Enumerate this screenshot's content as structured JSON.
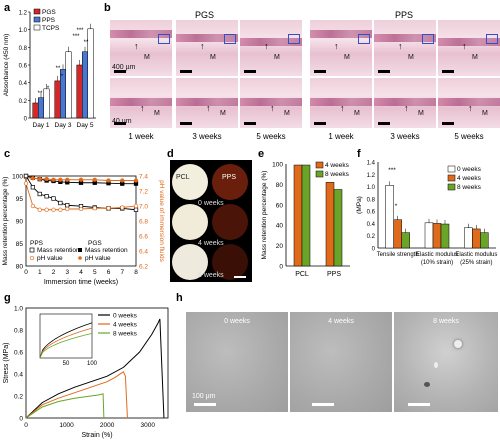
{
  "panels": {
    "a": "a",
    "b": "b",
    "c": "c",
    "d": "d",
    "e": "e",
    "f": "f",
    "g": "g",
    "h": "h"
  },
  "chart_a": {
    "type": "bar",
    "ylabel": "Absorbance (450 nm)",
    "ylim": [
      0,
      1.2
    ],
    "yticks": [
      "0",
      "0.2",
      "0.4",
      "0.6",
      "0.8",
      "1.0",
      "1.2"
    ],
    "categories": [
      "Day 1",
      "Day 3",
      "Day 5"
    ],
    "series": [
      {
        "name": "PGS",
        "color": "#d62728",
        "values": [
          0.17,
          0.42,
          0.6
        ]
      },
      {
        "name": "PPS",
        "color": "#4a78d0",
        "values": [
          0.23,
          0.55,
          0.75
        ]
      },
      {
        "name": "TCPS",
        "color": "#ffffff",
        "values": [
          0.33,
          0.75,
          1.01
        ]
      }
    ],
    "sig": [
      "**",
      "*",
      "**",
      "***",
      "*",
      "***",
      "**"
    ]
  },
  "histology": {
    "groups": [
      "PGS",
      "PPS"
    ],
    "columns": [
      "1 week",
      "3 weeks",
      "5 weeks",
      "1 week",
      "3 weeks",
      "5 weeks"
    ],
    "marker": "M",
    "scale_top": "400 µm",
    "scale_bottom": "40 µm"
  },
  "chart_c": {
    "type": "line",
    "xlabel": "Immersion time (weeks)",
    "ylabel": "Mass retention percentage (%)",
    "ylabel2": "pH value of immersion fluids",
    "xticks": [
      "0",
      "1",
      "2",
      "3",
      "4",
      "5",
      "6",
      "7",
      "8"
    ],
    "yticks": [
      "80",
      "85",
      "90",
      "95",
      "100"
    ],
    "y2ticks": [
      "6.2",
      "6.4",
      "6.6",
      "6.8",
      "7.0",
      "7.2",
      "7.4"
    ],
    "legend": {
      "pps": "PPS",
      "pgs": "PGS",
      "mass": "Mass retention",
      "ph": "pH value"
    },
    "series": [
      {
        "group": "PGS",
        "kind": "Mass retention",
        "x": [
          0,
          0.5,
          1,
          1.5,
          2,
          2.5,
          3,
          4,
          5,
          6,
          7,
          8
        ],
        "y": [
          100,
          99.6,
          99.3,
          99.0,
          98.9,
          98.7,
          98.6,
          98.5,
          98.5,
          98.4,
          98.3,
          98.3
        ]
      },
      {
        "group": "PGS",
        "kind": "pH value",
        "x": [
          0,
          0.5,
          1,
          1.5,
          2,
          2.5,
          3,
          4,
          5,
          6,
          7,
          8
        ],
        "y": [
          7.38,
          7.37,
          7.36,
          7.36,
          7.35,
          7.35,
          7.35,
          7.35,
          7.35,
          7.34,
          7.34,
          7.34
        ]
      },
      {
        "group": "PPS",
        "kind": "Mass retention",
        "x": [
          0,
          0.5,
          1,
          1.5,
          2,
          2.5,
          3,
          4,
          5,
          6,
          7,
          8
        ],
        "y": [
          100,
          97.5,
          96.0,
          95.5,
          95.0,
          94.0,
          93.5,
          93.3,
          93.0,
          92.8,
          92.8,
          92.5
        ]
      },
      {
        "group": "PPS",
        "kind": "pH value",
        "x": [
          0,
          0.5,
          1,
          1.5,
          2,
          2.5,
          3,
          4,
          5,
          6,
          7,
          8
        ],
        "y": [
          7.3,
          7.0,
          6.95,
          6.95,
          6.95,
          6.95,
          6.96,
          6.96,
          6.97,
          6.97,
          6.98,
          7.0
        ]
      }
    ]
  },
  "panel_d": {
    "labels": [
      "PCL",
      "PPS"
    ],
    "rows": [
      "0 weeks",
      "4 weeks",
      "8 weeks"
    ]
  },
  "chart_e": {
    "type": "bar",
    "ylabel": "Mass retention percentage (%)",
    "ylim": [
      0,
      100
    ],
    "yticks": [
      "0",
      "20",
      "40",
      "60",
      "80",
      "100"
    ],
    "categories": [
      "PCL",
      "PPS"
    ],
    "series": [
      {
        "name": "4 weeks",
        "color": "#e06a1b",
        "values": [
          99,
          82
        ]
      },
      {
        "name": "8 weeks",
        "color": "#6aa52a",
        "values": [
          99,
          75
        ]
      }
    ]
  },
  "chart_f": {
    "type": "bar",
    "ylabel": "(MPa)",
    "ylim": [
      0,
      1.4
    ],
    "yticks": [
      "0",
      "0.2",
      "0.4",
      "0.6",
      "0.8",
      "1.0",
      "1.2",
      "1.4"
    ],
    "categories": [
      "Tensile strength",
      "Elastic modulus (10% strain)",
      "Elastic modulus (25% strain)"
    ],
    "cat_lines": [
      [
        "Tensile strength"
      ],
      [
        "Elastic modulus",
        "(10% strain)"
      ],
      [
        "Elastic modulus",
        "(25% strain)"
      ]
    ],
    "series": [
      {
        "name": "0 weeks",
        "color": "#ffffff",
        "values": [
          1.02,
          0.41,
          0.33
        ]
      },
      {
        "name": "4 weeks",
        "color": "#e06a1b",
        "values": [
          0.46,
          0.4,
          0.31
        ]
      },
      {
        "name": "8 weeks",
        "color": "#6aa52a",
        "values": [
          0.25,
          0.39,
          0.25
        ]
      }
    ],
    "sig": [
      "***",
      "*"
    ]
  },
  "chart_g": {
    "type": "line",
    "xlabel": "Strain (%)",
    "ylabel": "Stress (MPa)",
    "ylim": [
      0,
      1.0
    ],
    "xlim": [
      0,
      3500
    ],
    "yticks": [
      "0",
      "0.2",
      "0.4",
      "0.6",
      "0.8",
      "1.0"
    ],
    "xticks": [
      "0",
      "1000",
      "2000",
      "3000"
    ],
    "inset_xticks": [
      "50",
      "100"
    ],
    "series": [
      {
        "name": "0 weeks",
        "color": "#000000",
        "x": [
          0,
          400,
          800,
          1200,
          1600,
          2000,
          2400,
          2800,
          3100,
          3250,
          3300,
          3400
        ],
        "y": [
          0,
          0.14,
          0.22,
          0.28,
          0.33,
          0.38,
          0.46,
          0.6,
          0.76,
          0.86,
          0.9,
          0
        ]
      },
      {
        "name": "4 weeks",
        "color": "#e06a1b",
        "x": [
          0,
          400,
          800,
          1200,
          1600,
          2000,
          2200,
          2400,
          2450,
          2500
        ],
        "y": [
          0,
          0.12,
          0.18,
          0.23,
          0.28,
          0.33,
          0.37,
          0.42,
          0.38,
          0
        ]
      },
      {
        "name": "8 weeks",
        "color": "#6aa52a",
        "x": [
          0,
          400,
          800,
          1200,
          1600,
          1800,
          1900,
          1920
        ],
        "y": [
          0,
          0.1,
          0.15,
          0.18,
          0.2,
          0.21,
          0.22,
          0
        ]
      }
    ]
  },
  "panel_h": {
    "labels": [
      "0 weeks",
      "4 weeks",
      "8 weeks"
    ],
    "scale": "100 µm"
  }
}
